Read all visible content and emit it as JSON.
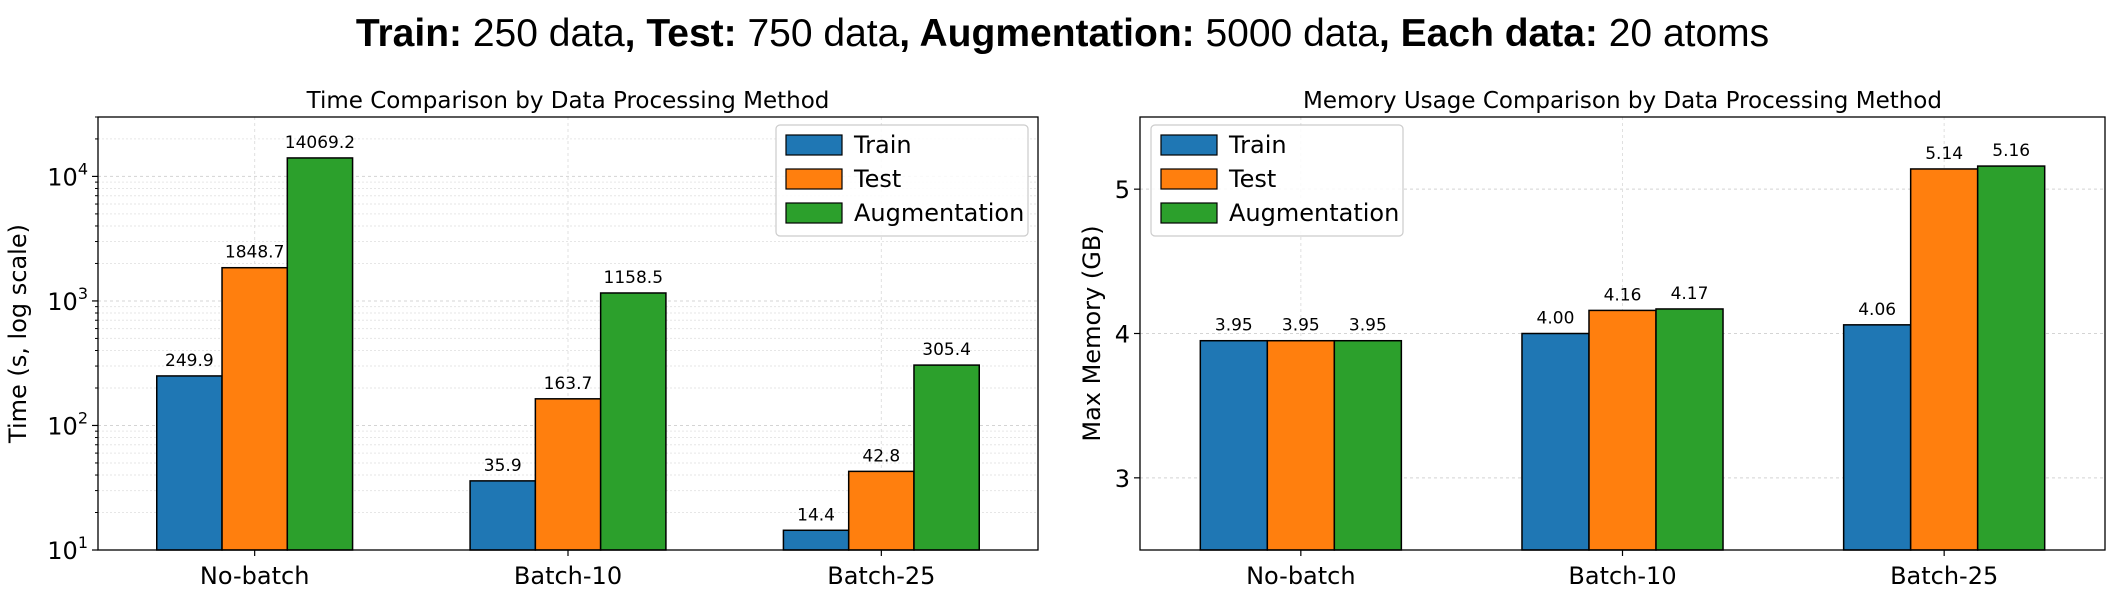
{
  "suptitle": {
    "train_key": "Train:",
    "train_val": " 250 data",
    "test_key": ", Test:",
    "test_val": " 750 data",
    "aug_key": ", Augmentation:",
    "aug_val": " 5000 data",
    "each_key": ", Each data:",
    "each_val": " 20 atoms"
  },
  "chart_data": [
    {
      "type": "bar",
      "title": "Time Comparison by Data Processing Method",
      "xlabel": "",
      "ylabel": "Time (s, log scale)",
      "yscale": "log",
      "ylim": [
        10,
        30000
      ],
      "yticks": [
        {
          "value": 10,
          "base": "10",
          "exp": "1"
        },
        {
          "value": 100,
          "base": "10",
          "exp": "2"
        },
        {
          "value": 1000,
          "base": "10",
          "exp": "3"
        },
        {
          "value": 10000,
          "base": "10",
          "exp": "4"
        }
      ],
      "categories": [
        "No-batch",
        "Batch-10",
        "Batch-25"
      ],
      "series": [
        {
          "name": "Train",
          "color": "#1f77b4",
          "values": [
            249.9,
            35.9,
            14.4
          ],
          "labels": [
            "249.9",
            "35.9",
            "14.4"
          ]
        },
        {
          "name": "Test",
          "color": "#ff7f0e",
          "values": [
            1848.7,
            163.7,
            42.8
          ],
          "labels": [
            "1848.7",
            "163.7",
            "42.8"
          ]
        },
        {
          "name": "Augmentation",
          "color": "#2ca02c",
          "values": [
            14069.2,
            1158.5,
            305.4
          ],
          "labels": [
            "14069.2",
            "1158.5",
            "305.4"
          ]
        }
      ],
      "grid": true,
      "legend": "top-right"
    },
    {
      "type": "bar",
      "title": "Memory Usage Comparison by Data Processing Method",
      "xlabel": "",
      "ylabel": "Max Memory (GB)",
      "yscale": "linear",
      "ylim": [
        2.5,
        5.5
      ],
      "yticks": [
        {
          "value": 3,
          "label": "3"
        },
        {
          "value": 4,
          "label": "4"
        },
        {
          "value": 5,
          "label": "5"
        }
      ],
      "categories": [
        "No-batch",
        "Batch-10",
        "Batch-25"
      ],
      "series": [
        {
          "name": "Train",
          "color": "#1f77b4",
          "values": [
            3.95,
            4.0,
            4.06
          ],
          "labels": [
            "3.95",
            "4.00",
            "4.06"
          ]
        },
        {
          "name": "Test",
          "color": "#ff7f0e",
          "values": [
            3.95,
            4.16,
            5.14
          ],
          "labels": [
            "3.95",
            "4.16",
            "5.14"
          ]
        },
        {
          "name": "Augmentation",
          "color": "#2ca02c",
          "values": [
            3.95,
            4.17,
            5.16
          ],
          "labels": [
            "3.95",
            "4.17",
            "5.16"
          ]
        }
      ],
      "grid": true,
      "legend": "top-left"
    }
  ]
}
